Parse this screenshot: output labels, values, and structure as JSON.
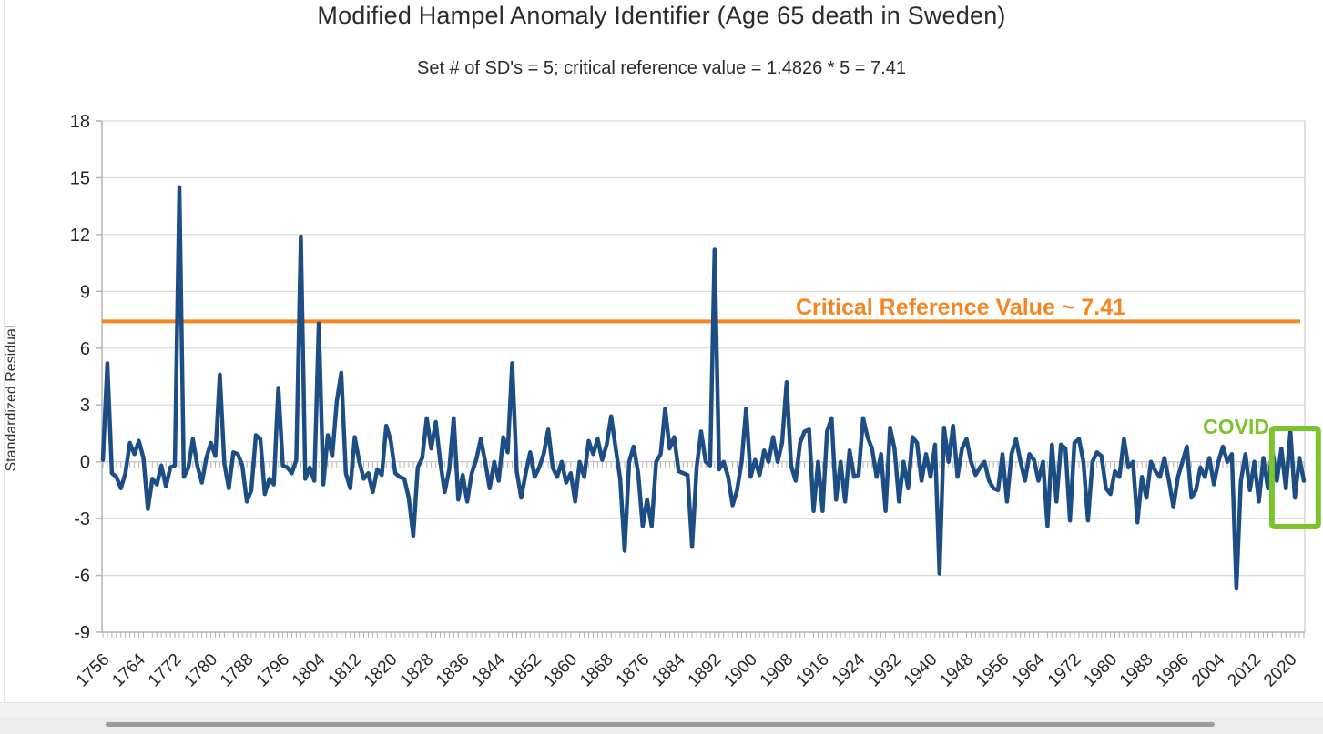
{
  "chart_data": {
    "type": "line",
    "title": "Modified Hampel Anomaly Identifier (Age 65 death in Sweden)",
    "subtitle": "Set # of SD's = 5; critical reference value = 1.4826 * 5 = 7.41",
    "ylabel": "Standardized Residual",
    "ylim": [
      -9,
      18
    ],
    "y_ticks": [
      18,
      15,
      12,
      9,
      6,
      3,
      0,
      -3,
      -6,
      -9
    ],
    "x_tick_labels": [
      1756,
      1764,
      1772,
      1780,
      1788,
      1796,
      1804,
      1812,
      1820,
      1828,
      1836,
      1844,
      1852,
      1860,
      1868,
      1876,
      1884,
      1892,
      1900,
      1908,
      1916,
      1924,
      1932,
      1940,
      1948,
      1956,
      1964,
      1972,
      1980,
      1988,
      1996,
      2004,
      2012,
      2020
    ],
    "grid": "horizontal",
    "legend": "none",
    "series": [
      {
        "name": "standardized-residual",
        "color": "#1c4e85",
        "x_start": 1756,
        "x_end": 2023,
        "values": [
          0.1,
          5.2,
          -0.6,
          -0.8,
          -1.4,
          -0.6,
          1.0,
          0.4,
          1.1,
          0.2,
          -2.5,
          -0.9,
          -1.2,
          -0.2,
          -1.3,
          -0.3,
          -0.2,
          14.5,
          -0.8,
          -0.3,
          1.2,
          -0.2,
          -1.1,
          0.2,
          1.0,
          0.3,
          4.6,
          -0.1,
          -1.4,
          0.5,
          0.4,
          -0.2,
          -2.1,
          -1.5,
          1.4,
          1.2,
          -1.7,
          -0.9,
          -1.2,
          3.9,
          -0.2,
          -0.3,
          -0.6,
          0.1,
          11.9,
          -0.9,
          -0.3,
          -1.0,
          7.3,
          -1.2,
          1.4,
          0.3,
          3.2,
          4.7,
          -0.6,
          -1.4,
          1.3,
          0.0,
          -0.9,
          -0.6,
          -1.6,
          -0.4,
          -0.7,
          1.9,
          1.1,
          -0.6,
          -0.8,
          -0.9,
          -1.9,
          -3.9,
          -0.3,
          0.2,
          2.3,
          0.7,
          2.1,
          0.0,
          -1.6,
          -0.4,
          2.3,
          -2.0,
          -0.7,
          -2.1,
          -0.6,
          0.1,
          1.2,
          0.0,
          -1.4,
          0.0,
          -1.0,
          1.3,
          0.5,
          5.2,
          -0.5,
          -1.9,
          -0.6,
          0.5,
          -0.8,
          -0.3,
          0.4,
          1.7,
          -0.3,
          -0.8,
          0.0,
          -1.1,
          -0.6,
          -2.1,
          0.0,
          -0.8,
          1.1,
          0.4,
          1.2,
          0.1,
          0.9,
          2.4,
          0.7,
          -0.9,
          -4.7,
          0.0,
          0.8,
          -0.6,
          -3.4,
          -2.0,
          -3.4,
          0.0,
          0.4,
          2.8,
          0.7,
          1.3,
          -0.5,
          -0.6,
          -0.7,
          -4.5,
          -0.3,
          1.6,
          0.0,
          -0.2,
          11.2,
          -0.4,
          0.0,
          -0.8,
          -2.3,
          -1.5,
          0.0,
          2.8,
          -0.8,
          0.1,
          -0.7,
          0.6,
          0.0,
          1.3,
          0.0,
          1.0,
          4.2,
          -0.2,
          -1.0,
          1.0,
          1.6,
          1.7,
          -2.6,
          0.0,
          -2.6,
          1.6,
          2.3,
          -2.0,
          0.0,
          -2.1,
          0.6,
          -0.8,
          -0.7,
          2.3,
          1.3,
          0.7,
          -0.8,
          0.4,
          -2.6,
          1.8,
          0.7,
          -2.1,
          0.0,
          -1.4,
          1.3,
          1.0,
          -1.0,
          0.4,
          -0.8,
          0.9,
          -5.9,
          1.8,
          0.0,
          1.9,
          -0.8,
          0.7,
          1.2,
          0.0,
          -0.7,
          -0.3,
          0.0,
          -1.0,
          -1.4,
          -1.5,
          0.4,
          -2.1,
          0.4,
          1.2,
          0.0,
          -1.0,
          0.4,
          0.1,
          -1.0,
          0.0,
          -3.4,
          0.9,
          -2.1,
          0.9,
          0.7,
          -3.1,
          1.0,
          1.2,
          0.0,
          -3.1,
          0.0,
          0.5,
          0.3,
          -1.4,
          -1.7,
          -0.5,
          -0.8,
          1.2,
          -0.3,
          0.0,
          -3.2,
          -0.8,
          -1.9,
          0.0,
          -0.5,
          -0.8,
          0.2,
          -1.0,
          -2.4,
          -0.8,
          0.0,
          0.8,
          -1.9,
          -1.5,
          -0.3,
          -0.8,
          0.2,
          -1.2,
          0.0,
          0.8,
          0.0,
          0.4,
          -6.7,
          -1.0,
          0.4,
          -1.5,
          0.0,
          -2.1,
          0.2,
          -1.4,
          0.6,
          -1.0,
          0.7,
          -1.4,
          1.6,
          -1.9,
          0.2,
          -1.0
        ]
      }
    ],
    "reference_line": {
      "value": 7.41,
      "label": "Critical Reference Value ~ 7.41",
      "color": "#f6861f"
    },
    "annotation": {
      "label": "COVID",
      "color": "#7cc32c",
      "box_year_from": 2015.9,
      "box_year_to": 2026.2,
      "box_value_from": -3.43,
      "box_value_to": 1.76
    },
    "colors": {
      "series_line": "#1c4e85",
      "reference": "#f6861f",
      "annotation_green": "#7cc32c",
      "gridline": "#d9d9d9",
      "axis": "#b3b3b3",
      "text": "#262626"
    }
  }
}
